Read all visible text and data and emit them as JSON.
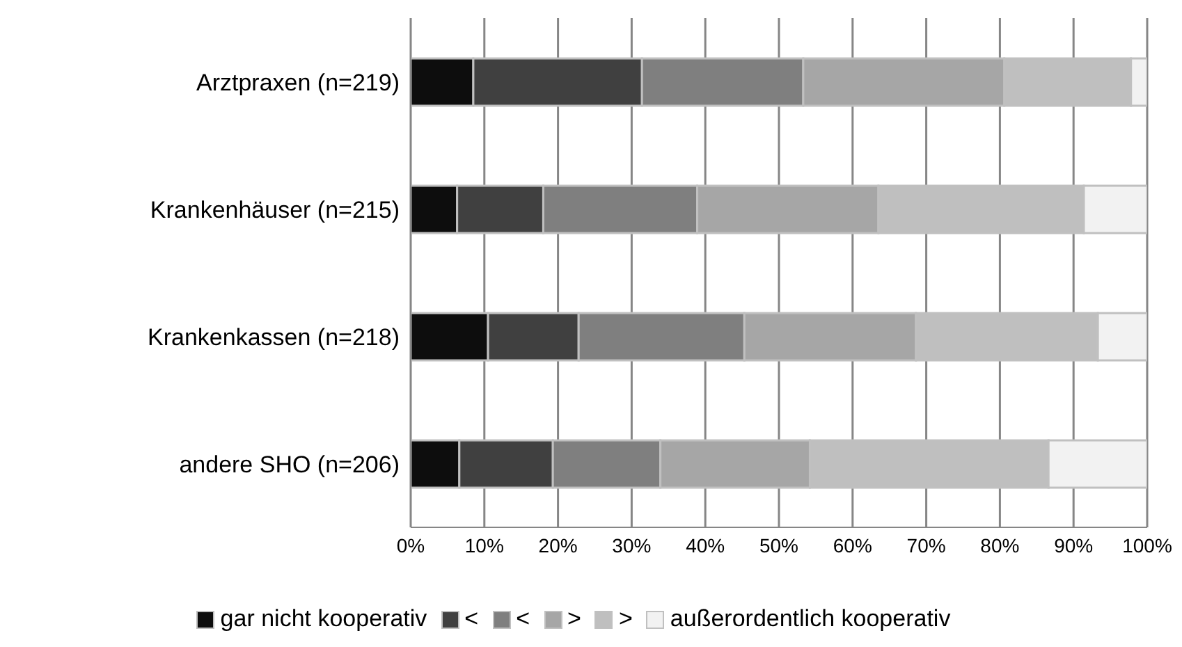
{
  "chart_data": {
    "type": "bar",
    "orientation": "horizontal",
    "stacked": true,
    "categories": [
      "Arztpraxen (n=219)",
      "Krankenhäuser (n=215)",
      "Krankenkassen (n=218)",
      "andere SHO (n=206)"
    ],
    "series": [
      {
        "name": "gar nicht kooperativ",
        "color": "#0d0d0d",
        "values": [
          8.5,
          6.3,
          10.5,
          6.6
        ]
      },
      {
        "name": "<",
        "color": "#404040",
        "values": [
          22.9,
          11.7,
          12.3,
          12.7
        ]
      },
      {
        "name": "<",
        "color": "#7f7f7f",
        "values": [
          21.9,
          20.9,
          22.5,
          14.6
        ]
      },
      {
        "name": ">",
        "color": "#a6a6a6",
        "values": [
          27.3,
          24.6,
          23.3,
          20.3
        ]
      },
      {
        "name": ">",
        "color": "#bfbfbf",
        "values": [
          17.2,
          27.9,
          24.7,
          32.4
        ]
      },
      {
        "name": "außerordentlich kooperativ",
        "color": "#f2f2f2",
        "values": [
          2.2,
          8.6,
          6.7,
          13.4
        ]
      }
    ],
    "xlim": [
      0,
      100
    ],
    "xticks": [
      {
        "value": 0,
        "label": "0%"
      },
      {
        "value": 10,
        "label": "10%"
      },
      {
        "value": 20,
        "label": "20%"
      },
      {
        "value": 30,
        "label": "30%"
      },
      {
        "value": 40,
        "label": "40%"
      },
      {
        "value": 50,
        "label": "50%"
      },
      {
        "value": 60,
        "label": "60%"
      },
      {
        "value": 70,
        "label": "70%"
      },
      {
        "value": 80,
        "label": "80%"
      },
      {
        "value": 90,
        "label": "90%"
      },
      {
        "value": 100,
        "label": "100%"
      }
    ],
    "grid": "x",
    "legend": "bottom"
  }
}
